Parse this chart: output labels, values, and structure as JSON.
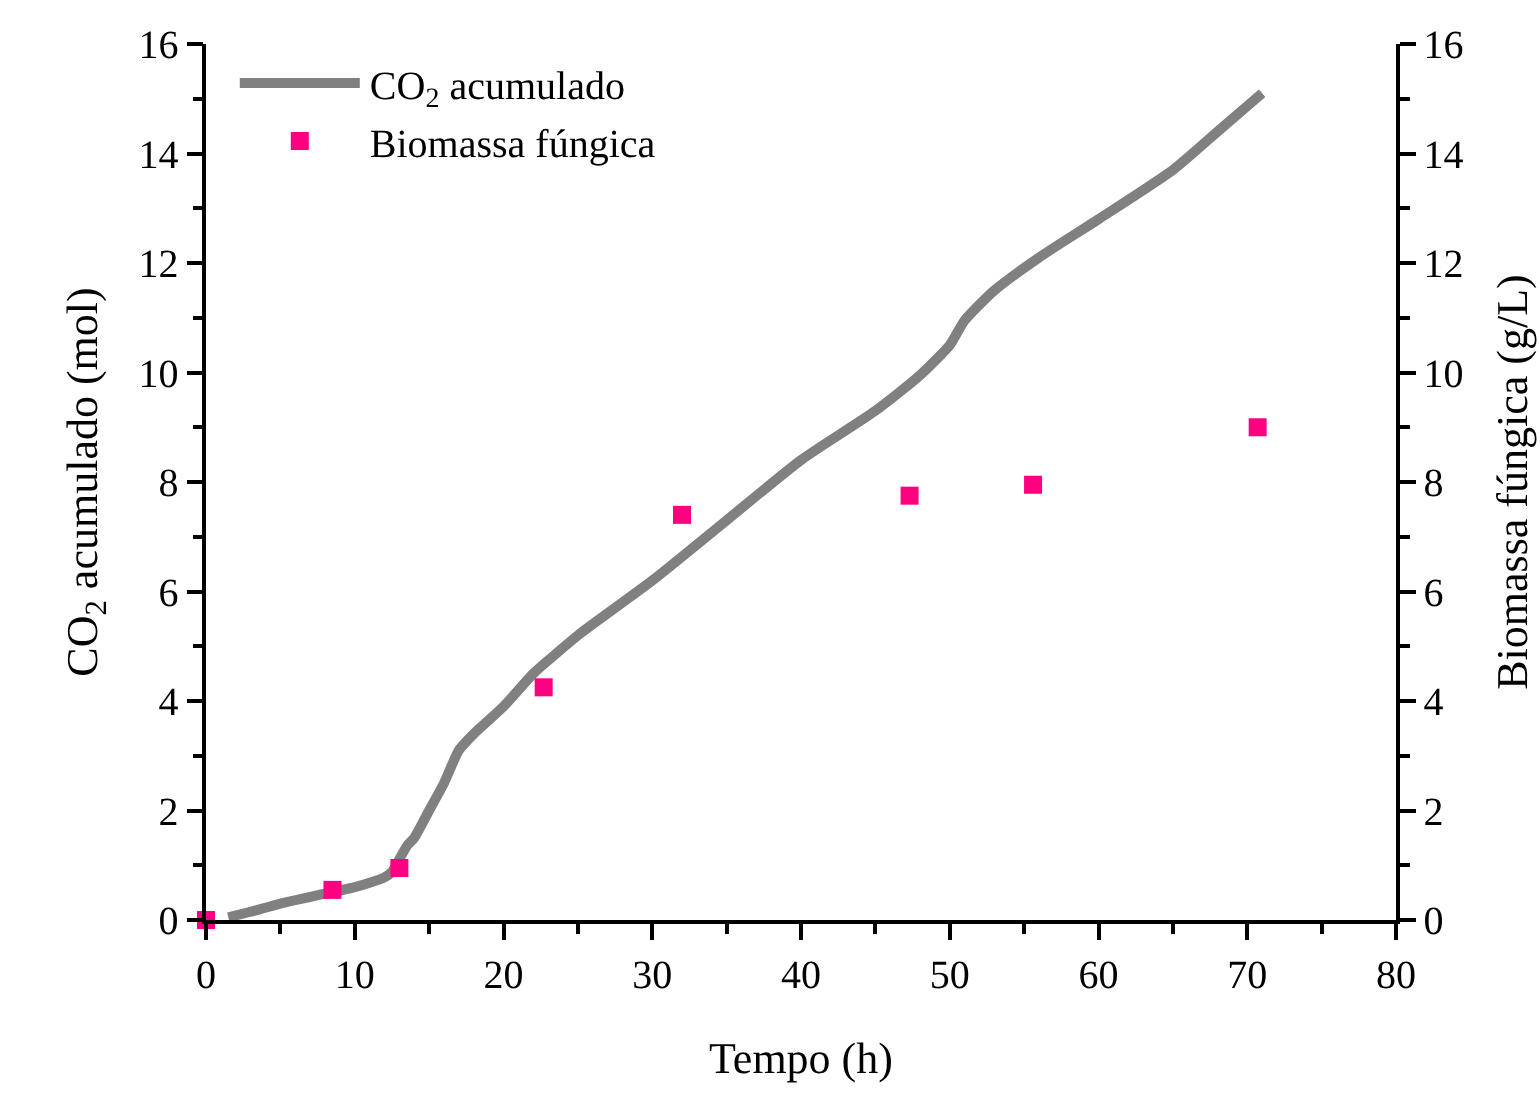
{
  "chart_data": {
    "type": "scatter",
    "xlabel": "Tempo (h)",
    "ylabel": "CO$_{2}$ acumulado (mol)",
    "y2label": "Biomassa fúngica (g/L)",
    "xlim": [
      0,
      80
    ],
    "xticks": [
      0,
      10,
      20,
      30,
      40,
      50,
      60,
      70,
      80
    ],
    "ylim": [
      0,
      16
    ],
    "yticks": [
      0,
      2,
      4,
      6,
      8,
      10,
      12,
      14,
      16
    ],
    "y2lim": [
      0,
      16
    ],
    "y2ticks": [
      0,
      2,
      4,
      6,
      8,
      10,
      12,
      14,
      16
    ],
    "grid": false,
    "legend": "top left",
    "series": [
      {
        "name": "CO$_{2}$ acumulado",
        "type": "line",
        "color": "#808080",
        "x": [
          1.5,
          3,
          5,
          8,
          10,
          11,
          12,
          12.5,
          13.5,
          14,
          15,
          16,
          17,
          18,
          20,
          22,
          23,
          25,
          30,
          35,
          40,
          45,
          48,
          50,
          51,
          53,
          56,
          60,
          65,
          68,
          71
        ],
        "values": [
          0.05,
          0.15,
          0.3,
          0.48,
          0.6,
          0.68,
          0.78,
          0.88,
          1.35,
          1.5,
          2.0,
          2.5,
          3.1,
          3.4,
          3.9,
          4.5,
          4.74,
          5.2,
          6.2,
          7.3,
          8.4,
          9.3,
          9.95,
          10.5,
          10.95,
          11.5,
          12.1,
          12.8,
          13.7,
          14.4,
          15.1
        ]
      },
      {
        "name": "Biomassa fúngica",
        "color": "#ff0080",
        "marker": "square",
        "axis": "y2",
        "x": [
          0,
          8.5,
          13,
          22.7,
          32,
          47.3,
          55.6,
          70.7
        ],
        "values": [
          0,
          0.55,
          0.95,
          4.25,
          7.4,
          7.75,
          7.95,
          9.0
        ]
      }
    ]
  }
}
